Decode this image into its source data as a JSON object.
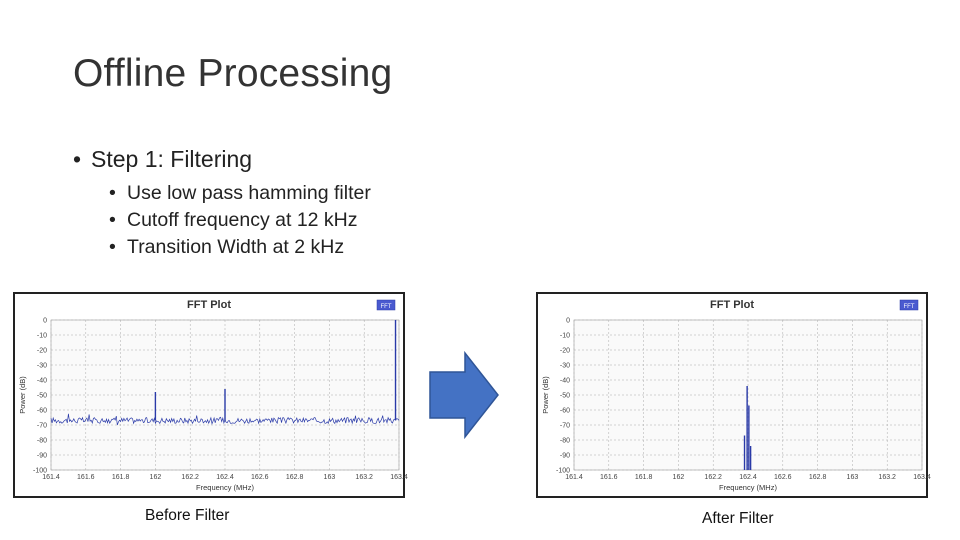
{
  "slide": {
    "title": "Offline Processing",
    "bullets": [
      {
        "text": "Step 1: Filtering",
        "level": 1
      },
      {
        "text": "Use low pass hamming filter",
        "level": 2
      },
      {
        "text": "Cutoff frequency at 12 kHz",
        "level": 2
      },
      {
        "text": "Transition Width at 2 kHz",
        "level": 2
      }
    ],
    "bullet_glyph": "•"
  },
  "captions": {
    "before": "Before Filter",
    "after": "After Filter"
  },
  "arrow": {
    "icon": "right-arrow-icon",
    "fill": "#4472c4",
    "stroke": "#2f5597"
  },
  "chart_data": [
    {
      "type": "line",
      "title": "FFT Plot",
      "xlabel": "Frequency (MHz)",
      "ylabel": "Power (dB)",
      "legend_badge": "FFT",
      "xlim": [
        161.4,
        163.4
      ],
      "ylim": [
        -100,
        0
      ],
      "x_ticks": [
        "161.4",
        "161.6",
        "161.8",
        "162",
        "162.2",
        "162.4",
        "162.6",
        "162.8",
        "163",
        "163.2",
        "163.4"
      ],
      "y_ticks": [
        "0",
        "-10",
        "-20",
        "-30",
        "-40",
        "-50",
        "-60",
        "-70",
        "-80",
        "-90",
        "-100"
      ],
      "grid": true,
      "noise_floor_db": -67,
      "peaks": [
        {
          "x": 162.0,
          "y": -48
        },
        {
          "x": 162.4,
          "y": -46
        },
        {
          "x": 163.38,
          "y": 0
        }
      ],
      "series_color": "#2a3aa8"
    },
    {
      "type": "line",
      "title": "FFT Plot",
      "xlabel": "Frequency (MHz)",
      "ylabel": "Power (dB)",
      "legend_badge": "FFT",
      "xlim": [
        161.4,
        163.4
      ],
      "ylim": [
        -100,
        0
      ],
      "x_ticks": [
        "161.4",
        "161.6",
        "161.8",
        "162",
        "162.2",
        "162.4",
        "162.6",
        "162.8",
        "163",
        "163.2",
        "163.4"
      ],
      "y_ticks": [
        "0",
        "-10",
        "-20",
        "-30",
        "-40",
        "-50",
        "-60",
        "-70",
        "-80",
        "-90",
        "-100"
      ],
      "grid": true,
      "noise_floor_db": -100,
      "peaks": [
        {
          "x": 162.38,
          "y": -77
        },
        {
          "x": 162.395,
          "y": -44
        },
        {
          "x": 162.405,
          "y": -57
        },
        {
          "x": 162.415,
          "y": -84
        }
      ],
      "series_color": "#2a3aa8"
    }
  ]
}
